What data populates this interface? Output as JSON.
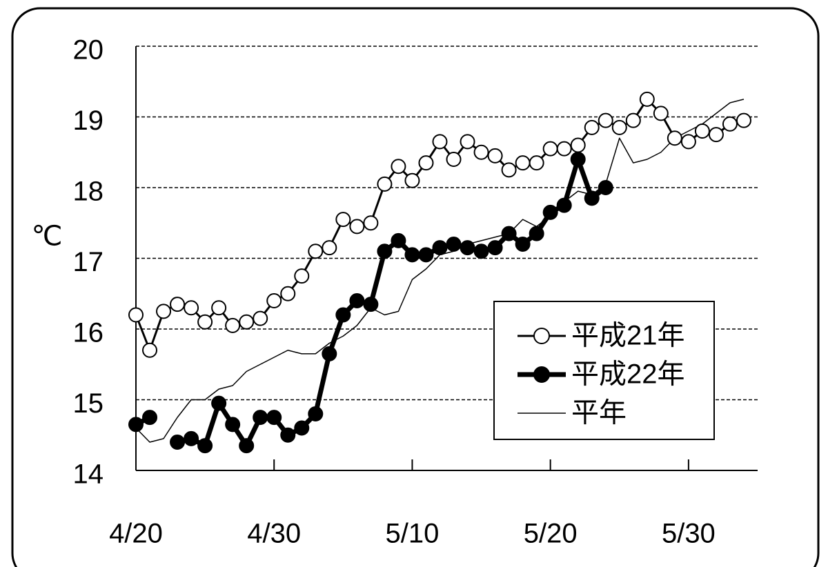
{
  "chart_data": {
    "type": "line",
    "ylabel": "℃",
    "categories": [
      "4/20",
      null,
      null,
      null,
      null,
      null,
      null,
      null,
      null,
      null,
      "4/30",
      null,
      null,
      null,
      null,
      null,
      null,
      null,
      null,
      null,
      "5/10",
      null,
      null,
      null,
      null,
      null,
      null,
      null,
      null,
      null,
      "5/20",
      null,
      null,
      null,
      null,
      null,
      null,
      null,
      null,
      null,
      "5/30",
      null,
      null,
      null,
      null
    ],
    "series": [
      {
        "name": "平成21年",
        "color": "#000000",
        "marker": "open",
        "line_width": 3,
        "values": [
          16.2,
          15.7,
          16.25,
          16.35,
          16.3,
          16.1,
          16.3,
          16.05,
          16.1,
          16.15,
          16.4,
          16.5,
          16.75,
          17.1,
          17.15,
          17.55,
          17.45,
          17.5,
          18.05,
          18.3,
          18.1,
          18.35,
          18.65,
          18.4,
          18.65,
          18.5,
          18.45,
          18.25,
          18.35,
          18.35,
          18.55,
          18.55,
          18.6,
          18.85,
          18.95,
          18.85,
          18.95,
          19.25,
          19.05,
          18.7,
          18.65,
          18.8,
          18.75,
          18.9,
          18.95
        ]
      },
      {
        "name": "平成22年",
        "color": "#000000",
        "marker": "filled",
        "line_width": 7,
        "values": [
          14.65,
          14.75,
          null,
          14.4,
          14.45,
          14.35,
          14.95,
          14.65,
          14.35,
          14.75,
          14.75,
          14.5,
          14.6,
          14.8,
          15.65,
          16.2,
          16.4,
          16.35,
          17.1,
          17.25,
          17.05,
          17.05,
          17.15,
          17.2,
          17.15,
          17.1,
          17.15,
          17.35,
          17.2,
          17.35,
          17.65,
          17.75,
          18.4,
          17.85,
          18.0,
          null,
          null,
          null,
          null,
          null,
          null,
          null,
          null,
          null,
          null
        ]
      },
      {
        "name": "平年",
        "color": "#000000",
        "marker": "none",
        "line_width": 1.5,
        "values": [
          14.6,
          14.4,
          14.45,
          14.75,
          15.0,
          15.0,
          15.15,
          15.2,
          15.4,
          15.5,
          15.6,
          15.7,
          15.65,
          15.65,
          15.8,
          15.9,
          16.05,
          16.3,
          16.2,
          16.25,
          16.7,
          16.85,
          17.05,
          17.1,
          17.2,
          17.25,
          17.3,
          17.35,
          17.55,
          17.45,
          17.6,
          17.8,
          17.95,
          17.9,
          18.05,
          18.7,
          18.35,
          18.4,
          18.5,
          18.7,
          18.8,
          18.9,
          19.05,
          19.2,
          19.25
        ]
      }
    ],
    "ylim": [
      14,
      20
    ],
    "yticks": [
      14,
      15,
      16,
      17,
      18,
      19,
      20
    ],
    "grid": true,
    "legend": "lower right"
  }
}
